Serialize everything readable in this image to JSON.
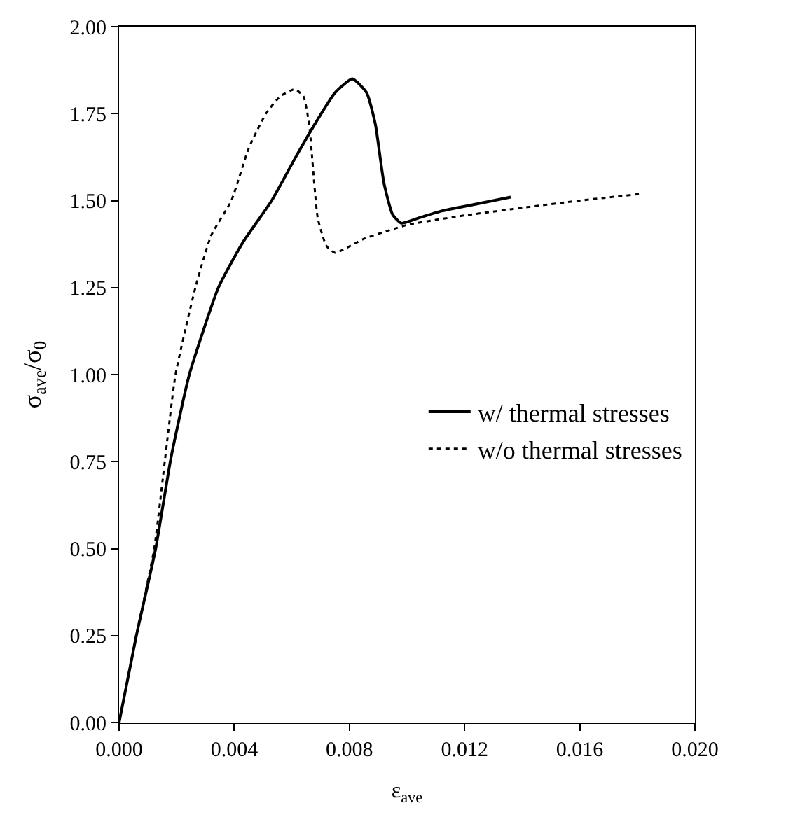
{
  "chart_data": {
    "type": "line",
    "xlabel": "ε$_{ave}$",
    "ylabel": "σ$_{ave}$/σ$_{0}$",
    "xlim": [
      0,
      0.02
    ],
    "xticks": [
      {
        "value": 0,
        "label": "0.000"
      },
      0.004,
      0.008,
      0.012,
      0.016,
      {
        "value": 0.02,
        "label": "0.020"
      }
    ],
    "ylim": [
      0,
      2
    ],
    "yticks": [
      {
        "value": 0,
        "label": "0.00"
      },
      0.25,
      {
        "value": 0.5,
        "label": "0.50"
      },
      0.75,
      {
        "value": 1,
        "label": "1.00"
      },
      1.25,
      {
        "value": 1.5,
        "label": "1.50"
      },
      1.75,
      {
        "value": 2,
        "label": "2.00"
      }
    ],
    "legend": "right",
    "marker": "none",
    "series": [
      {
        "name": "w/ thermal stresses",
        "color": "#000000",
        "line_style": "solid",
        "x": [
          0,
          0.0006,
          0.00127,
          0.0018,
          0.00244,
          0.00345,
          0.0043,
          0.0053,
          0.0061,
          0.0068,
          0.0075,
          0.0081,
          0.0086,
          0.0089,
          0.0092,
          0.0095,
          0.0098,
          0.0104,
          0.0112,
          0.0124,
          0.0136
        ],
        "values": [
          0,
          0.25,
          0.5,
          0.76,
          1.0,
          1.25,
          1.38,
          1.5,
          1.62,
          1.72,
          1.81,
          1.85,
          1.81,
          1.72,
          1.55,
          1.46,
          1.435,
          1.45,
          1.47,
          1.49,
          1.51
        ]
      },
      {
        "name": "w/o thermal stresses",
        "color": "#000000",
        "line_style": "dotted",
        "x": [
          0,
          0.0006,
          0.00122,
          0.0016,
          0.00196,
          0.00265,
          0.0032,
          0.0039,
          0.0045,
          0.0051,
          0.0056,
          0.0061,
          0.0064,
          0.0066,
          0.0069,
          0.0072,
          0.0075,
          0.0085,
          0.01,
          0.0118,
          0.0136,
          0.016,
          0.0182
        ],
        "values": [
          0,
          0.25,
          0.5,
          0.76,
          1.0,
          1.25,
          1.4,
          1.5,
          1.65,
          1.75,
          1.8,
          1.82,
          1.8,
          1.72,
          1.45,
          1.37,
          1.35,
          1.39,
          1.43,
          1.455,
          1.475,
          1.5,
          1.52
        ]
      }
    ]
  }
}
